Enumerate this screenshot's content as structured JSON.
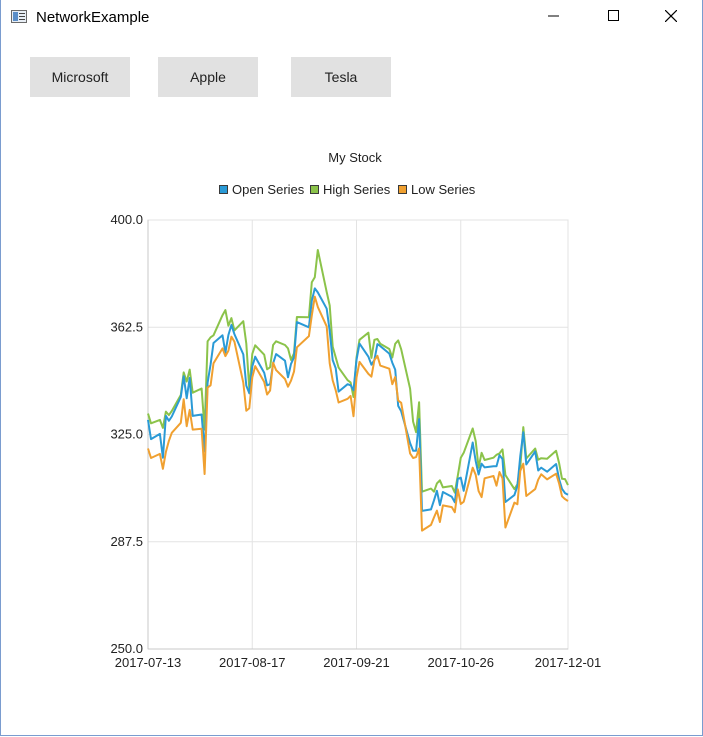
{
  "window": {
    "title": "NetworkExample"
  },
  "toolbar": {
    "buttons": [
      {
        "label": "Microsoft"
      },
      {
        "label": "Apple"
      },
      {
        "label": "Tesla"
      }
    ]
  },
  "chart_data": {
    "type": "line",
    "title": "My Stock",
    "legend_placement": "top-center",
    "grid": true,
    "ylim": [
      250,
      400
    ],
    "xlim": [
      "2017-07-13",
      "2017-12-01"
    ],
    "y_ticks": [
      "250.0",
      "287.5",
      "325.0",
      "362.5",
      "400.0"
    ],
    "x_ticks": [
      "2017-07-13",
      "2017-08-17",
      "2017-09-21",
      "2017-10-26",
      "2017-12-01"
    ],
    "x": [
      "2017-07-13",
      "2017-07-14",
      "2017-07-17",
      "2017-07-18",
      "2017-07-19",
      "2017-07-20",
      "2017-07-21",
      "2017-07-24",
      "2017-07-25",
      "2017-07-26",
      "2017-07-27",
      "2017-07-28",
      "2017-07-31",
      "2017-08-01",
      "2017-08-02",
      "2017-08-03",
      "2017-08-04",
      "2017-08-07",
      "2017-08-08",
      "2017-08-09",
      "2017-08-10",
      "2017-08-11",
      "2017-08-14",
      "2017-08-15",
      "2017-08-16",
      "2017-08-17",
      "2017-08-18",
      "2017-08-21",
      "2017-08-22",
      "2017-08-23",
      "2017-08-24",
      "2017-08-25",
      "2017-08-28",
      "2017-08-29",
      "2017-08-30",
      "2017-08-31",
      "2017-09-01",
      "2017-09-05",
      "2017-09-06",
      "2017-09-07",
      "2017-09-08",
      "2017-09-11",
      "2017-09-12",
      "2017-09-13",
      "2017-09-14",
      "2017-09-15",
      "2017-09-18",
      "2017-09-19",
      "2017-09-20",
      "2017-09-21",
      "2017-09-22",
      "2017-09-25",
      "2017-09-26",
      "2017-09-27",
      "2017-09-28",
      "2017-09-29",
      "2017-10-02",
      "2017-10-03",
      "2017-10-04",
      "2017-10-05",
      "2017-10-06",
      "2017-10-09",
      "2017-10-10",
      "2017-10-11",
      "2017-10-12",
      "2017-10-13",
      "2017-10-16",
      "2017-10-17",
      "2017-10-18",
      "2017-10-19",
      "2017-10-20",
      "2017-10-23",
      "2017-10-24",
      "2017-10-25",
      "2017-10-26",
      "2017-10-27",
      "2017-10-30",
      "2017-10-31",
      "2017-11-01",
      "2017-11-02",
      "2017-11-03",
      "2017-11-06",
      "2017-11-07",
      "2017-11-08",
      "2017-11-09",
      "2017-11-10",
      "2017-11-13",
      "2017-11-14",
      "2017-11-15",
      "2017-11-16",
      "2017-11-17",
      "2017-11-20",
      "2017-11-21",
      "2017-11-22",
      "2017-11-24",
      "2017-11-27",
      "2017-11-28",
      "2017-11-29",
      "2017-11-30",
      "2017-12-01"
    ],
    "series": [
      {
        "name": "Open Series",
        "color": "#2a9ad6",
        "values": [
          330.1,
          323.4,
          325.2,
          316.9,
          331.5,
          329.8,
          331.3,
          338.1,
          345.4,
          337.7,
          344.8,
          331.5,
          332.0,
          319.1,
          343.1,
          349.5,
          357.0,
          359.7,
          353.6,
          359.8,
          363.3,
          360.1,
          353.0,
          342.1,
          339.4,
          348.8,
          352.2,
          346.6,
          342.2,
          342.6,
          349.9,
          353.1,
          350.8,
          345.0,
          349.7,
          352.0,
          364.3,
          362.5,
          371.8,
          376.1,
          374.7,
          369.0,
          361.2,
          351.0,
          348.2,
          340.0,
          342.6,
          342.2,
          340.5,
          351.1,
          356.8,
          352.2,
          349.4,
          351.0,
          356.6,
          355.9,
          353.3,
          350.1,
          347.7,
          335.0,
          333.1,
          322.0,
          319.3,
          319.3,
          330.4,
          298.3,
          298.8,
          302.0,
          305.3,
          300.3,
          304.9,
          303.2,
          301.3,
          309.5,
          309.9,
          305.3,
          322.2,
          315.7,
          311.0,
          314.8,
          313.5,
          313.9,
          313.9,
          317.8,
          316.4,
          301.4,
          303.8,
          307.0,
          317.5,
          325.8,
          314.5,
          319.1,
          312.4,
          313.4,
          312.0,
          314.7,
          309.4,
          306.0,
          304.5,
          303.9
        ],
        "unused": null
      },
      {
        "name": "High Series",
        "color": "#8bc34a",
        "values": [
          332.3,
          328.9,
          330.1,
          327.3,
          333.0,
          331.8,
          333.2,
          338.8,
          346.7,
          343.5,
          347.7,
          339.6,
          341.1,
          326.7,
          357.6,
          359.0,
          359.7,
          366.7,
          368.5,
          363.0,
          365.7,
          361.4,
          364.6,
          356.8,
          340.9,
          353.2,
          356.2,
          352.9,
          347.8,
          348.5,
          356.3,
          357.6,
          356.3,
          355.1,
          351.1,
          353.4,
          366.1,
          366.0,
          378.2,
          380.0,
          389.5,
          374.8,
          370.1,
          355.7,
          352.0,
          348.4,
          344.0,
          343.2,
          338.1,
          351.9,
          358.1,
          360.6,
          351.8,
          358.1,
          358.4,
          356.7,
          354.9,
          351.9,
          356.7,
          357.9,
          354.8,
          341.0,
          329.5,
          325.8,
          336.3,
          305.0,
          306.1,
          305.0,
          307.9,
          309.0,
          306.5,
          307.0,
          304.7,
          310.6,
          316.9,
          318.6,
          327.1,
          322.7,
          313.4,
          318.6,
          316.1,
          316.9,
          317.9,
          318.4,
          319.8,
          310.8,
          305.9,
          307.6,
          313.7,
          327.6,
          316.6,
          320.1,
          316.2,
          316.7,
          316.5,
          319.3,
          315.0,
          309.5,
          309.4,
          307.3
        ],
        "unused": null
      },
      {
        "name": "Low Series",
        "color": "#f0a030",
        "values": [
          320.1,
          316.8,
          318.2,
          313.0,
          318.9,
          322.8,
          325.6,
          329.1,
          337.3,
          327.9,
          333.6,
          326.7,
          327.0,
          311.2,
          341.4,
          342.2,
          349.9,
          355.1,
          352.4,
          354.3,
          359.2,
          357.5,
          343.1,
          333.3,
          334.2,
          345.0,
          348.9,
          343.4,
          339.0,
          340.4,
          350.1,
          347.5,
          344.4,
          341.7,
          343.8,
          347.0,
          355.5,
          359.4,
          366.6,
          373.2,
          369.6,
          362.8,
          349.9,
          343.9,
          340.5,
          336.2,
          337.5,
          338.5,
          331.4,
          344.9,
          350.4,
          346.2,
          345.2,
          351.0,
          352.5,
          349.1,
          348.0,
          342.6,
          345.1,
          336.9,
          336.1,
          318.4,
          316.8,
          317.1,
          320.1,
          291.4,
          293.4,
          296.0,
          298.4,
          294.4,
          300.2,
          299.6,
          297.8,
          305.8,
          300.7,
          301.5,
          313.4,
          310.9,
          305.2,
          303.1,
          309.7,
          310.5,
          307.1,
          311.9,
          309.6,
          292.5,
          301.2,
          300.6,
          312.3,
          314.8,
          303.5,
          305.9,
          309.2,
          311.1,
          309.3,
          311.3,
          307.9,
          303.4,
          302.4,
          301.7
        ],
        "unused": null
      }
    ]
  }
}
